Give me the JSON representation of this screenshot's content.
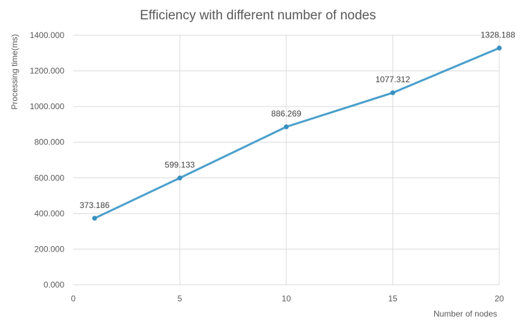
{
  "chart_data": {
    "type": "line",
    "title": "Efficiency with different number of nodes",
    "xlabel": "Number of nodes",
    "ylabel": "Processing time(ms)",
    "x": [
      1,
      5,
      10,
      15,
      20
    ],
    "series": [
      {
        "name": "",
        "values": [
          373.186,
          599.133,
          886.269,
          1077.312,
          1328.188
        ]
      }
    ],
    "data_labels": [
      "373.186",
      "599.133",
      "886.269",
      "1077.312",
      "1328.188"
    ],
    "xlim": [
      0,
      20
    ],
    "ylim": [
      0,
      1400
    ],
    "x_ticks": [
      0,
      5,
      10,
      15,
      20
    ],
    "x_tick_labels": [
      "0",
      "5",
      "10",
      "15",
      "20"
    ],
    "y_ticks": [
      0,
      200,
      400,
      600,
      800,
      1000,
      1200,
      1400
    ],
    "y_tick_labels": [
      "0.000",
      "200.000",
      "400.000",
      "600.000",
      "800.000",
      "1000.000",
      "1200.000",
      "1400.000"
    ],
    "grid": true,
    "legend": "none",
    "colors": {
      "line": "#4a9fcb",
      "marker": "#3a8fc0",
      "grid": "#d9d9d9",
      "text": "#595959"
    }
  }
}
